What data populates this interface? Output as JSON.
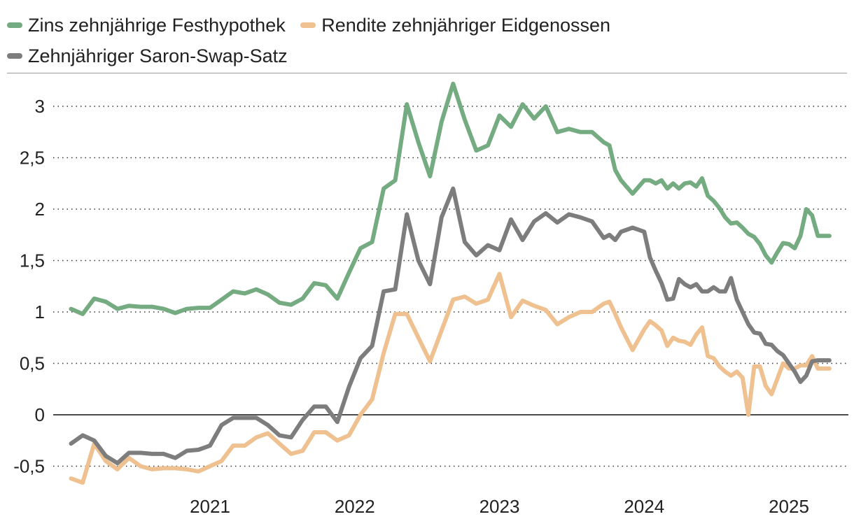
{
  "chart_data": {
    "type": "line",
    "title": "",
    "xlabel": "",
    "ylabel": "",
    "ylim": [
      -0.7,
      3.3
    ],
    "xlim": [
      2020.0,
      2025.35
    ],
    "grid": "horizontal dotted",
    "legend_position": "top",
    "x_ticks": [
      {
        "value": 2021.0,
        "label": "2021"
      },
      {
        "value": 2022.0,
        "label": "2022"
      },
      {
        "value": 2023.0,
        "label": "2023"
      },
      {
        "value": 2024.0,
        "label": "2024"
      },
      {
        "value": 2025.0,
        "label": "2025"
      }
    ],
    "y_ticks": [
      {
        "value": 3,
        "label": "3"
      },
      {
        "value": 2.5,
        "label": "2,5"
      },
      {
        "value": 2,
        "label": "2"
      },
      {
        "value": 1.5,
        "label": "1,5"
      },
      {
        "value": 1,
        "label": "1"
      },
      {
        "value": 0.5,
        "label": "0,5"
      },
      {
        "value": 0,
        "label": "0"
      },
      {
        "value": -0.5,
        "label": "-0,5"
      }
    ],
    "series": [
      {
        "name": "Zins zehnjährige Festhypothek",
        "color": "#74ab80",
        "x": [
          2020.04,
          2020.12,
          2020.2,
          2020.28,
          2020.36,
          2020.44,
          2020.52,
          2020.6,
          2020.68,
          2020.76,
          2020.84,
          2020.92,
          2021.0,
          2021.08,
          2021.16,
          2021.24,
          2021.32,
          2021.4,
          2021.48,
          2021.56,
          2021.64,
          2021.72,
          2021.8,
          2021.88,
          2021.96,
          2022.04,
          2022.12,
          2022.2,
          2022.28,
          2022.36,
          2022.44,
          2022.52,
          2022.6,
          2022.68,
          2022.76,
          2022.84,
          2022.92,
          2023.0,
          2023.08,
          2023.16,
          2023.24,
          2023.32,
          2023.4,
          2023.48,
          2023.56,
          2023.64,
          2023.72,
          2023.76,
          2023.8,
          2023.84,
          2023.92,
          2024.0,
          2024.04,
          2024.08,
          2024.12,
          2024.16,
          2024.2,
          2024.24,
          2024.28,
          2024.32,
          2024.36,
          2024.4,
          2024.44,
          2024.48,
          2024.52,
          2024.56,
          2024.6,
          2024.64,
          2024.68,
          2024.72,
          2024.76,
          2024.8,
          2024.84,
          2024.88,
          2024.92,
          2024.96,
          2025.0,
          2025.04,
          2025.08,
          2025.12,
          2025.16,
          2025.2,
          2025.24,
          2025.28
        ],
        "values": [
          1.03,
          0.98,
          1.13,
          1.1,
          1.03,
          1.06,
          1.05,
          1.05,
          1.03,
          0.99,
          1.03,
          1.04,
          1.04,
          1.12,
          1.2,
          1.18,
          1.22,
          1.17,
          1.09,
          1.07,
          1.13,
          1.28,
          1.26,
          1.13,
          1.38,
          1.62,
          1.68,
          2.2,
          2.28,
          3.02,
          2.65,
          2.32,
          2.85,
          3.22,
          2.87,
          2.57,
          2.62,
          2.91,
          2.8,
          3.02,
          2.88,
          3.0,
          2.75,
          2.78,
          2.75,
          2.75,
          2.65,
          2.62,
          2.38,
          2.28,
          2.15,
          2.28,
          2.28,
          2.25,
          2.28,
          2.2,
          2.25,
          2.2,
          2.25,
          2.26,
          2.22,
          2.3,
          2.13,
          2.08,
          2.01,
          1.92,
          1.86,
          1.87,
          1.82,
          1.76,
          1.73,
          1.66,
          1.55,
          1.48,
          1.58,
          1.67,
          1.66,
          1.62,
          1.74,
          2.0,
          1.94,
          1.74,
          1.74,
          1.74
        ]
      },
      {
        "name": "Rendite zehnjähriger Eidgenossen",
        "color": "#efc190",
        "x": [
          2020.04,
          2020.12,
          2020.2,
          2020.28,
          2020.36,
          2020.44,
          2020.52,
          2020.6,
          2020.68,
          2020.76,
          2020.84,
          2020.92,
          2021.0,
          2021.08,
          2021.16,
          2021.24,
          2021.32,
          2021.4,
          2021.48,
          2021.56,
          2021.64,
          2021.72,
          2021.8,
          2021.88,
          2021.96,
          2022.04,
          2022.12,
          2022.2,
          2022.28,
          2022.36,
          2022.44,
          2022.52,
          2022.6,
          2022.68,
          2022.76,
          2022.84,
          2022.92,
          2023.0,
          2023.08,
          2023.16,
          2023.24,
          2023.32,
          2023.4,
          2023.48,
          2023.56,
          2023.64,
          2023.72,
          2023.76,
          2023.8,
          2023.84,
          2023.92,
          2024.0,
          2024.04,
          2024.08,
          2024.12,
          2024.16,
          2024.2,
          2024.24,
          2024.28,
          2024.32,
          2024.36,
          2024.4,
          2024.44,
          2024.48,
          2024.52,
          2024.56,
          2024.6,
          2024.64,
          2024.68,
          2024.72,
          2024.76,
          2024.8,
          2024.84,
          2024.88,
          2024.92,
          2024.96,
          2025.0,
          2025.04,
          2025.08,
          2025.12,
          2025.16,
          2025.2,
          2025.24,
          2025.28
        ],
        "values": [
          -0.62,
          -0.66,
          -0.28,
          -0.45,
          -0.53,
          -0.42,
          -0.5,
          -0.53,
          -0.52,
          -0.52,
          -0.53,
          -0.55,
          -0.5,
          -0.45,
          -0.3,
          -0.3,
          -0.22,
          -0.18,
          -0.28,
          -0.38,
          -0.35,
          -0.17,
          -0.17,
          -0.25,
          -0.2,
          0.0,
          0.15,
          0.6,
          0.98,
          0.98,
          0.75,
          0.52,
          0.82,
          1.12,
          1.15,
          1.08,
          1.12,
          1.37,
          0.95,
          1.11,
          1.06,
          1.02,
          0.88,
          0.95,
          1.0,
          1.0,
          1.08,
          1.1,
          0.98,
          0.85,
          0.63,
          0.83,
          0.91,
          0.87,
          0.82,
          0.67,
          0.75,
          0.72,
          0.71,
          0.68,
          0.78,
          0.85,
          0.57,
          0.55,
          0.47,
          0.42,
          0.38,
          0.42,
          0.36,
          0.0,
          0.47,
          0.47,
          0.28,
          0.2,
          0.35,
          0.5,
          0.45,
          0.45,
          0.48,
          0.48,
          0.57,
          0.45,
          0.45,
          0.45
        ]
      },
      {
        "name": "Zehnjähriger Saron-Swap-Satz",
        "color": "#7d7d7d",
        "x": [
          2020.04,
          2020.12,
          2020.2,
          2020.28,
          2020.36,
          2020.44,
          2020.52,
          2020.6,
          2020.68,
          2020.76,
          2020.84,
          2020.92,
          2021.0,
          2021.08,
          2021.16,
          2021.24,
          2021.32,
          2021.4,
          2021.48,
          2021.56,
          2021.64,
          2021.72,
          2021.8,
          2021.88,
          2021.96,
          2022.04,
          2022.12,
          2022.2,
          2022.28,
          2022.36,
          2022.44,
          2022.52,
          2022.6,
          2022.68,
          2022.76,
          2022.84,
          2022.92,
          2023.0,
          2023.08,
          2023.16,
          2023.24,
          2023.32,
          2023.4,
          2023.48,
          2023.56,
          2023.64,
          2023.72,
          2023.76,
          2023.8,
          2023.84,
          2023.92,
          2024.0,
          2024.04,
          2024.08,
          2024.12,
          2024.16,
          2024.2,
          2024.24,
          2024.28,
          2024.32,
          2024.36,
          2024.4,
          2024.44,
          2024.48,
          2024.52,
          2024.56,
          2024.6,
          2024.64,
          2024.68,
          2024.72,
          2024.76,
          2024.8,
          2024.84,
          2024.88,
          2024.92,
          2024.96,
          2025.0,
          2025.04,
          2025.08,
          2025.12,
          2025.16,
          2025.2,
          2025.24,
          2025.28
        ],
        "values": [
          -0.28,
          -0.2,
          -0.25,
          -0.4,
          -0.47,
          -0.37,
          -0.37,
          -0.38,
          -0.38,
          -0.42,
          -0.35,
          -0.34,
          -0.3,
          -0.1,
          -0.03,
          -0.03,
          -0.03,
          -0.1,
          -0.2,
          -0.22,
          -0.05,
          0.08,
          0.08,
          -0.07,
          0.27,
          0.55,
          0.67,
          1.2,
          1.22,
          1.95,
          1.5,
          1.27,
          1.92,
          2.2,
          1.68,
          1.55,
          1.65,
          1.6,
          1.9,
          1.7,
          1.88,
          1.96,
          1.87,
          1.95,
          1.92,
          1.88,
          1.72,
          1.75,
          1.7,
          1.78,
          1.82,
          1.78,
          1.53,
          1.4,
          1.28,
          1.12,
          1.13,
          1.32,
          1.27,
          1.24,
          1.27,
          1.2,
          1.2,
          1.24,
          1.2,
          1.2,
          1.33,
          1.12,
          1.0,
          0.88,
          0.8,
          0.79,
          0.69,
          0.68,
          0.62,
          0.58,
          0.5,
          0.42,
          0.32,
          0.38,
          0.52,
          0.53,
          0.53,
          0.53
        ]
      }
    ]
  }
}
